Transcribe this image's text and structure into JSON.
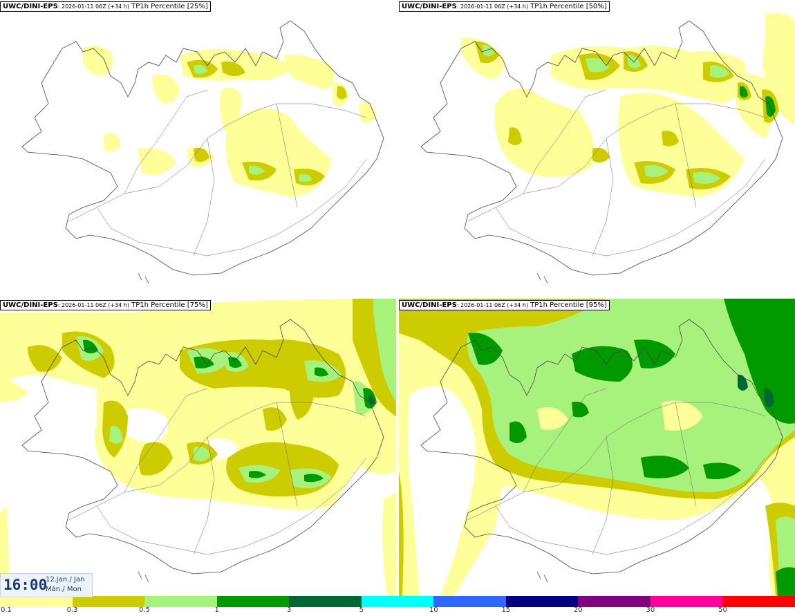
{
  "panels": [
    {
      "id": "p25",
      "model": "UWC/DINI-EPS",
      "run": ": 2026-01-11 06Z (+34 h)",
      "product": " TP1h Percentile [25%]"
    },
    {
      "id": "p50",
      "model": "UWC/DINI-EPS",
      "run": ": 2026-01-11 06Z (+34 h)",
      "product": " TP1h Percentile [50%]"
    },
    {
      "id": "p75",
      "model": "UWC/DINI-EPS",
      "run": ": 2026-01-11 06Z (+34 h)",
      "product": " TP1h Percentile [75%]"
    },
    {
      "id": "p95",
      "model": "UWC/DINI-EPS",
      "run": ": 2026-01-11 06Z (+34 h)",
      "product": " TP1h Percentile [95%]"
    }
  ],
  "valid_time": {
    "time": "16:00",
    "date_line1": "12.jan./ Jan",
    "date_line2": "Mán./ Mon"
  },
  "colorbar": {
    "colors": [
      "#ffff99",
      "#cccc00",
      "#a6f27c",
      "#009a00",
      "#006633",
      "#00ffff",
      "#3366ff",
      "#000080",
      "#800080",
      "#ff0099",
      "#ff0000"
    ],
    "labels": [
      "0.1",
      "0.3",
      "0.5",
      "1",
      "3",
      "5",
      "10",
      "15",
      "20",
      "30",
      "50"
    ]
  },
  "map_colors": {
    "coast": "#444444",
    "land": "#ffffff"
  }
}
